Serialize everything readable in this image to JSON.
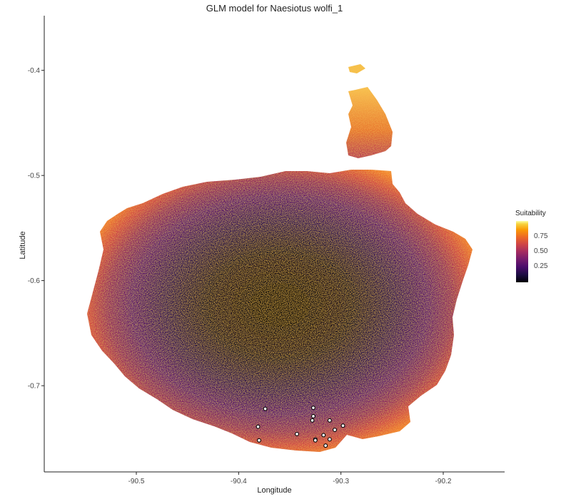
{
  "title": "GLM model for Naesiotus wolfi_1",
  "x_axis": {
    "label": "Longitude",
    "ticks": [
      "-90.5",
      "-90.4",
      "-90.3",
      "-90.2"
    ]
  },
  "y_axis": {
    "label": "Latitude",
    "ticks": [
      "-0.4",
      "-0.5",
      "-0.6",
      "-0.7"
    ]
  },
  "legend": {
    "title": "Suitability",
    "ticks": [
      "0.75",
      "0.50",
      "0.25"
    ],
    "palette": [
      "#000004",
      "#1b0c41",
      "#4a0c6b",
      "#781c6d",
      "#a52c60",
      "#cf4446",
      "#ed6925",
      "#fb9b06",
      "#f7d13d",
      "#fcffa4"
    ]
  },
  "chart_data": {
    "type": "heatmap",
    "title": "GLM model for Naesiotus wolfi_1",
    "xlabel": "Longitude",
    "ylabel": "Latitude",
    "xlim": [
      -90.59,
      -90.14
    ],
    "ylim": [
      -0.782,
      -0.348
    ],
    "value_label": "Suitability",
    "value_range": [
      0,
      1
    ],
    "grid": false,
    "legend_position": "right",
    "occurrence_points": [
      [
        -90.374,
        -0.722
      ],
      [
        -90.327,
        -0.721
      ],
      [
        -90.327,
        -0.729
      ],
      [
        -90.328,
        -0.733
      ],
      [
        -90.311,
        -0.733
      ],
      [
        -90.298,
        -0.738
      ],
      [
        -90.381,
        -0.739
      ],
      [
        -90.306,
        -0.742
      ],
      [
        -90.343,
        -0.746
      ],
      [
        -90.317,
        -0.747
      ],
      [
        -90.325,
        -0.751
      ],
      [
        -90.325,
        -0.752
      ],
      [
        -90.38,
        -0.752
      ],
      [
        -90.311,
        -0.751
      ],
      [
        -90.315,
        -0.757
      ]
    ]
  }
}
